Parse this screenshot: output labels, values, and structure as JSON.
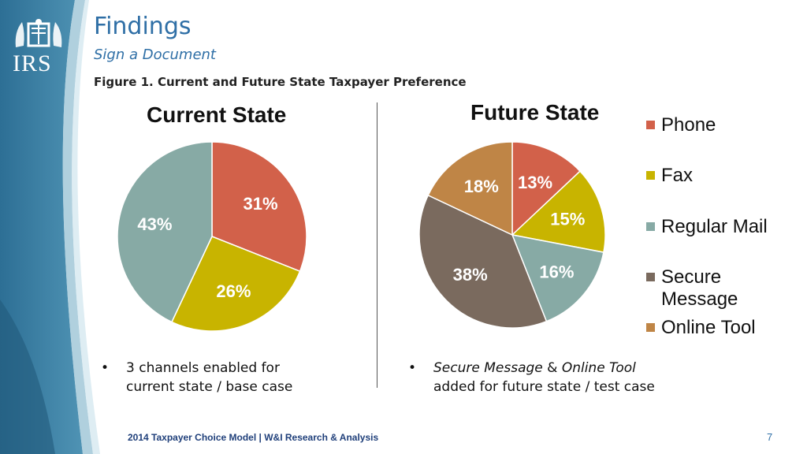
{
  "header": {
    "title": "Findings",
    "subtitle": "Sign a Document",
    "figure_caption": "Figure 1. Current and Future State Taxpayer Preference"
  },
  "logo": {
    "text": "IRS"
  },
  "colors": {
    "phone": "#d2614a",
    "fax": "#c8b400",
    "regular_mail": "#87aaa5",
    "secure_message": "#7a6a5e",
    "online_tool": "#bf8546",
    "title_blue": "#2f6fa6",
    "band_dark": "#2d6f95",
    "band_light": "#7fb2c9"
  },
  "chart_data": [
    {
      "type": "pie",
      "title": "Current State",
      "labels": [
        "Phone",
        "Fax",
        "Regular Mail"
      ],
      "values": [
        31,
        26,
        43
      ],
      "value_labels": [
        "31%",
        "26%",
        "43%"
      ]
    },
    {
      "type": "pie",
      "title": "Future State",
      "labels": [
        "Phone",
        "Fax",
        "Regular Mail",
        "Secure Message",
        "Online Tool"
      ],
      "values": [
        13,
        15,
        16,
        38,
        18
      ],
      "value_labels": [
        "13%",
        "15%",
        "16%",
        "38%",
        "18%"
      ]
    }
  ],
  "legend": {
    "placement": "right",
    "items": [
      {
        "label": "Phone",
        "color": "#d2614a"
      },
      {
        "label": "Fax",
        "color": "#c8b400"
      },
      {
        "label": "Regular Mail",
        "color": "#87aaa5"
      },
      {
        "label": "Secure Message",
        "color": "#7a6a5e"
      },
      {
        "label": "Online Tool",
        "color": "#bf8546"
      }
    ]
  },
  "notes": {
    "left": {
      "line1": "3 channels enabled for",
      "line2": "current state / base case"
    },
    "right": {
      "part1": "Secure Message",
      "part2": " & ",
      "part3": "Online Tool",
      "line2": "added for future state / test case"
    },
    "bullet": "•"
  },
  "footer": {
    "text": "2014 Taxpayer Choice Model | W&I Research & Analysis",
    "page_number": "7"
  }
}
